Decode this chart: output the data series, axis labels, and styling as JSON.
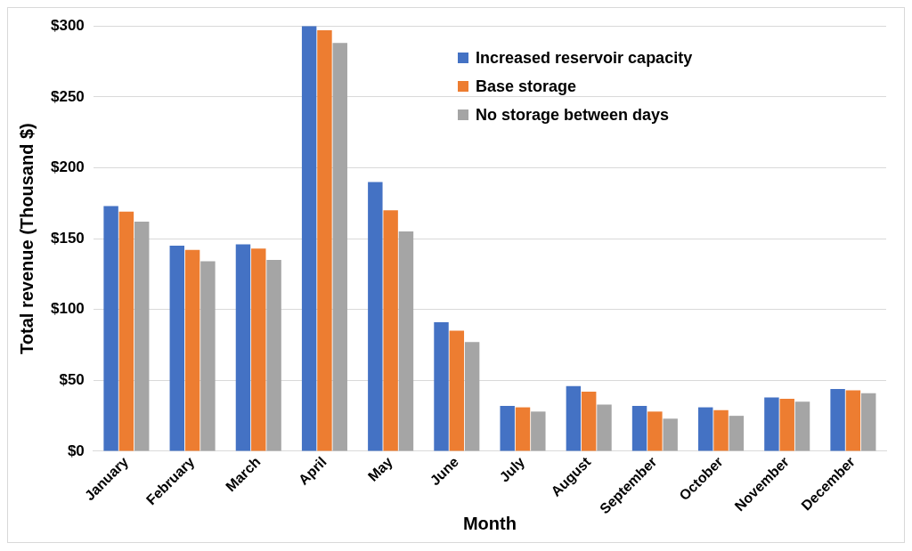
{
  "chart_data": {
    "type": "bar",
    "xlabel": "Month",
    "ylabel": "Total revenue (Thousand $)",
    "categories": [
      "January",
      "February",
      "March",
      "April",
      "May",
      "June",
      "July",
      "August",
      "September",
      "October",
      "November",
      "December"
    ],
    "series": [
      {
        "name": "Increased reservoir capacity",
        "color": "#4472c4",
        "values": [
          173,
          145,
          146,
          300,
          190,
          91,
          32,
          46,
          32,
          31,
          38,
          44
        ]
      },
      {
        "name": "Base storage",
        "color": "#ed7d31",
        "values": [
          169,
          142,
          143,
          297,
          170,
          85,
          31,
          42,
          28,
          29,
          37,
          43
        ]
      },
      {
        "name": "No storage between days",
        "color": "#a5a5a5",
        "values": [
          162,
          134,
          135,
          288,
          155,
          77,
          28,
          33,
          23,
          25,
          35,
          41
        ]
      }
    ],
    "ylim": [
      0,
      300
    ],
    "yticks": [
      {
        "value": 0,
        "label": "$0"
      },
      {
        "value": 50,
        "label": "$50"
      },
      {
        "value": 100,
        "label": "$100"
      },
      {
        "value": 150,
        "label": "$150"
      },
      {
        "value": 200,
        "label": "$200"
      },
      {
        "value": 250,
        "label": "$250"
      },
      {
        "value": 300,
        "label": "$300"
      }
    ],
    "grid": "y",
    "legend": "top right"
  }
}
